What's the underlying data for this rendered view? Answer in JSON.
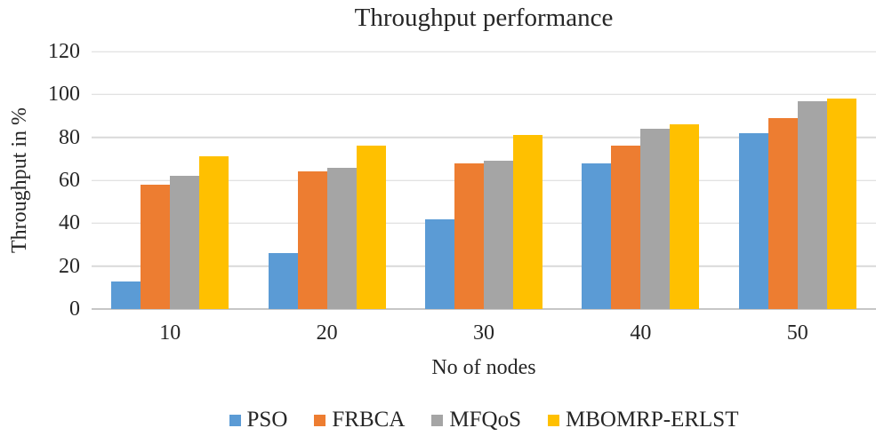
{
  "colors": {
    "background": "#FFFFFF",
    "text": "#262626",
    "gridline": "#D9D9D9",
    "axis_line": "#C6C6C6"
  },
  "chart_data": {
    "type": "bar",
    "title": "Throughput performance",
    "xlabel": "No of nodes",
    "ylabel": "Throughput in %",
    "categories": [
      "10",
      "20",
      "30",
      "40",
      "50"
    ],
    "series": [
      {
        "name": "PSO",
        "color": "#5B9BD5",
        "values": [
          13,
          26,
          42,
          68,
          82
        ]
      },
      {
        "name": "FRBCA",
        "color": "#ED7D31",
        "values": [
          58,
          64,
          68,
          76,
          89
        ]
      },
      {
        "name": "MFQoS",
        "color": "#A5A5A5",
        "values": [
          62,
          66,
          69,
          84,
          97
        ]
      },
      {
        "name": "MBOMRP-ERLST",
        "color": "#FFC000",
        "values": [
          71,
          76,
          81,
          86,
          98
        ]
      }
    ],
    "ylim": [
      0,
      120
    ],
    "yticks": [
      0,
      20,
      40,
      60,
      80,
      100,
      120
    ],
    "grid": true,
    "legend_position": "bottom"
  }
}
